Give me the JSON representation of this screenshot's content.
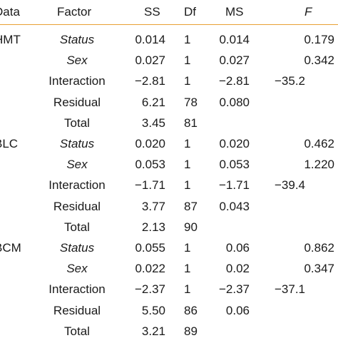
{
  "table": {
    "headers": {
      "data": "Data",
      "factor": "Factor",
      "ss": "SS",
      "df": "Df",
      "ms": "MS",
      "f": "F"
    },
    "groups": [
      {
        "name": "HMT",
        "rows": [
          {
            "factor": "Status",
            "ss": "0.014",
            "df": "1",
            "ms": "0.014",
            "f": "0.179"
          },
          {
            "factor": "Sex",
            "ss": "0.027",
            "df": "1",
            "ms": "0.027",
            "f": "0.342"
          },
          {
            "factor": "Interaction",
            "ss": "−2.81",
            "df": "1",
            "ms": "−2.81",
            "f": "−35.2"
          },
          {
            "factor": "Residual",
            "ss": "6.21",
            "df": "78",
            "ms": "0.080",
            "f": ""
          },
          {
            "factor": "Total",
            "ss": "3.45",
            "df": "81",
            "ms": "",
            "f": ""
          }
        ]
      },
      {
        "name": "BLC",
        "rows": [
          {
            "factor": "Status",
            "ss": "0.020",
            "df": "1",
            "ms": "0.020",
            "f": "0.462"
          },
          {
            "factor": "Sex",
            "ss": "0.053",
            "df": "1",
            "ms": "0.053",
            "f": "1.220"
          },
          {
            "factor": "Interaction",
            "ss": "−1.71",
            "df": "1",
            "ms": "−1.71",
            "f": "−39.4"
          },
          {
            "factor": "Residual",
            "ss": "3.77",
            "df": "87",
            "ms": "0.043",
            "f": ""
          },
          {
            "factor": "Total",
            "ss": "2.13",
            "df": "90",
            "ms": "",
            "f": ""
          }
        ]
      },
      {
        "name": "BCM",
        "rows": [
          {
            "factor": "Status",
            "ss": "0.055",
            "df": "1",
            "ms": "0.06",
            "f": "0.862"
          },
          {
            "factor": "Sex",
            "ss": "0.022",
            "df": "1",
            "ms": "0.02",
            "f": "0.347"
          },
          {
            "factor": "Interaction",
            "ss": "−2.37",
            "df": "1",
            "ms": "−2.37",
            "f": "−37.1"
          },
          {
            "factor": "Residual",
            "ss": "5.50",
            "df": "86",
            "ms": "0.06",
            "f": ""
          },
          {
            "factor": "Total",
            "ss": "3.21",
            "df": "89",
            "ms": "",
            "f": ""
          }
        ]
      }
    ]
  },
  "colors": {
    "rule": "#e8a033",
    "text": "#1a1a1a"
  }
}
